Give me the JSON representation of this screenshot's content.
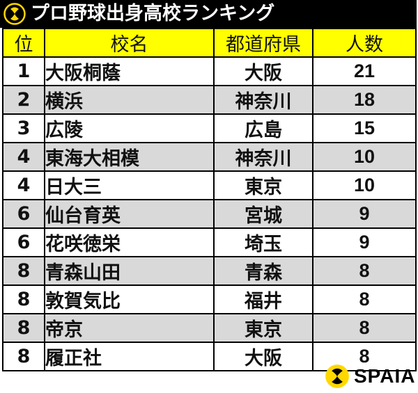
{
  "header": {
    "title": "プロ野球出身高校ランキング",
    "logo_icon": "spaia-logo-icon"
  },
  "colors": {
    "header_bg": "#000000",
    "column_header_bg": "#ffff00",
    "alt_row_bg": "#d9d9d9",
    "logo_yellow": "#ffd800"
  },
  "table": {
    "columns": [
      "位",
      "校名",
      "都道府県",
      "人数"
    ],
    "rows": [
      {
        "rank": "1",
        "school": "大阪桐蔭",
        "prefecture": "大阪",
        "count": "21"
      },
      {
        "rank": "2",
        "school": "横浜",
        "prefecture": "神奈川",
        "count": "18"
      },
      {
        "rank": "3",
        "school": "広陵",
        "prefecture": "広島",
        "count": "15"
      },
      {
        "rank": "4",
        "school": "東海大相模",
        "prefecture": "神奈川",
        "count": "10"
      },
      {
        "rank": "4",
        "school": "日大三",
        "prefecture": "東京",
        "count": "10"
      },
      {
        "rank": "6",
        "school": "仙台育英",
        "prefecture": "宮城",
        "count": "9"
      },
      {
        "rank": "6",
        "school": "花咲徳栄",
        "prefecture": "埼玉",
        "count": "9"
      },
      {
        "rank": "8",
        "school": "青森山田",
        "prefecture": "青森",
        "count": "8"
      },
      {
        "rank": "8",
        "school": "敦賀気比",
        "prefecture": "福井",
        "count": "8"
      },
      {
        "rank": "8",
        "school": "帝京",
        "prefecture": "東京",
        "count": "8"
      },
      {
        "rank": "8",
        "school": "履正社",
        "prefecture": "大阪",
        "count": "8"
      }
    ]
  },
  "footer": {
    "brand": "SPAIA",
    "logo_icon": "spaia-logo-icon"
  }
}
